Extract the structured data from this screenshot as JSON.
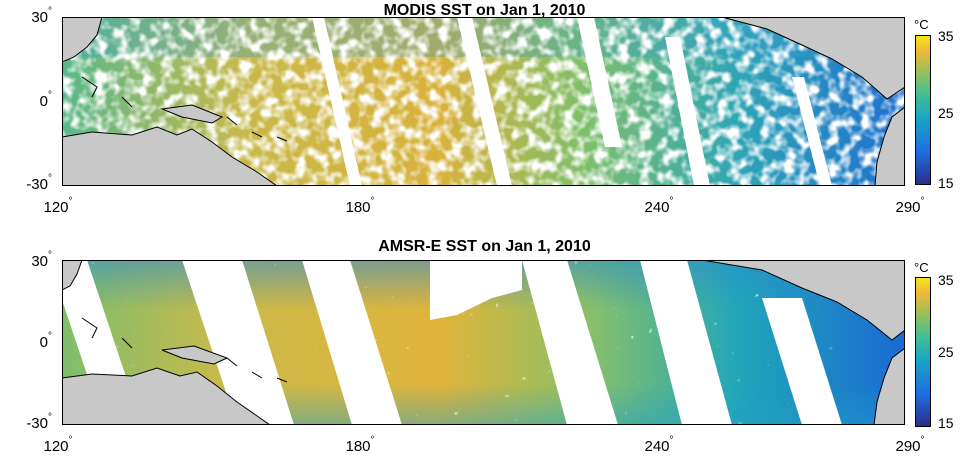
{
  "chart_data": [
    {
      "type": "heatmap",
      "title": "MODIS SST on Jan 1, 2010",
      "xlabel": "",
      "ylabel": "",
      "x_ticks": [
        "120",
        "180",
        "240",
        "290"
      ],
      "y_ticks": [
        "30",
        "0",
        "-30"
      ],
      "xlim": [
        120,
        290
      ],
      "ylim": [
        -30,
        30
      ],
      "colorbar": {
        "unit": "°C",
        "ticks": [
          "35",
          "25",
          "15"
        ],
        "range": [
          15,
          35
        ]
      },
      "coverage": "cloud-masked, patchy along diagonal swaths"
    },
    {
      "type": "heatmap",
      "title": "AMSR-E SST on Jan 1, 2010",
      "xlabel": "",
      "ylabel": "",
      "x_ticks": [
        "120",
        "180",
        "240",
        "290"
      ],
      "y_ticks": [
        "30",
        "0",
        "-30"
      ],
      "xlim": [
        120,
        290
      ],
      "ylim": [
        -30,
        30
      ],
      "colorbar": {
        "unit": "°C",
        "ticks": [
          "35",
          "25",
          "15"
        ],
        "range": [
          15,
          35
        ]
      },
      "coverage": "diagonal swaths with white gaps between them"
    }
  ],
  "degree_symbol": "°"
}
